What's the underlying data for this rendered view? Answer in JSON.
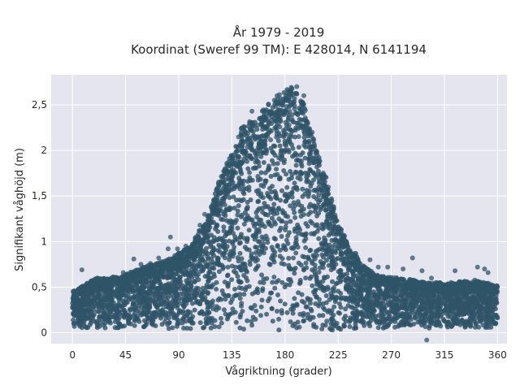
{
  "chart_data": {
    "type": "scatter",
    "title_line1": "År 1979 - 2019",
    "title_line2": "Koordinat (Sweref 99 TM): E 428014, N 6141194",
    "xlabel": "Vågriktning (grader)",
    "ylabel": "Signifikant våghöjd (m)",
    "xlim": [
      -18,
      368
    ],
    "ylim": [
      -0.12,
      2.83
    ],
    "x_ticks": [
      0,
      45,
      90,
      135,
      180,
      225,
      270,
      315,
      360
    ],
    "x_tick_labels": [
      "0",
      "45",
      "90",
      "135",
      "180",
      "225",
      "270",
      "315",
      "360"
    ],
    "y_ticks": [
      0,
      0.5,
      1,
      1.5,
      2,
      2.5
    ],
    "y_tick_labels": [
      "0",
      "0,5",
      "1",
      "1,5",
      "2",
      "2,5"
    ],
    "grid": true,
    "marker_color": "#2f5468",
    "background_color": "#e5e5f0",
    "x_range": [
      0,
      360
    ],
    "envelope_x": [
      0,
      20,
      40,
      60,
      80,
      100,
      115,
      125,
      135,
      145,
      155,
      165,
      175,
      185,
      195,
      205,
      215,
      225,
      235,
      245,
      260,
      280,
      300,
      320,
      340,
      360
    ],
    "envelope_max_y": [
      0.45,
      0.6,
      0.62,
      0.72,
      0.8,
      0.95,
      1.3,
      1.7,
      2.0,
      2.3,
      2.35,
      2.5,
      2.62,
      2.7,
      2.55,
      2.1,
      1.7,
      1.2,
      0.95,
      0.75,
      0.62,
      0.6,
      0.55,
      0.55,
      0.58,
      0.52
    ],
    "envelope_min_y": [
      0.05,
      0.05,
      0.05,
      0.05,
      0.04,
      0.03,
      0.03,
      0.02,
      0.02,
      0.01,
      0.01,
      0.01,
      0.01,
      0.01,
      0.01,
      0.01,
      0.02,
      0.02,
      0.03,
      0.04,
      0.05,
      0.05,
      0.05,
      0.05,
      0.05,
      0.05
    ],
    "outlier_points": [
      [
        8,
        0.69
      ],
      [
        17,
        0.56
      ],
      [
        43,
        0.66
      ],
      [
        52,
        0.81
      ],
      [
        58,
        0.75
      ],
      [
        66,
        0.76
      ],
      [
        73,
        0.82
      ],
      [
        81,
        0.92
      ],
      [
        83,
        1.05
      ],
      [
        89,
        0.92
      ],
      [
        96,
        0.95
      ],
      [
        108,
        1.18
      ],
      [
        112,
        1.3
      ],
      [
        128,
        1.65
      ],
      [
        131,
        1.78
      ],
      [
        140,
        2.0
      ],
      [
        143,
        2.2
      ],
      [
        150,
        2.3
      ],
      [
        152,
        2.43
      ],
      [
        160,
        2.35
      ],
      [
        166,
        2.5
      ],
      [
        171,
        2.55
      ],
      [
        176,
        2.57
      ],
      [
        183,
        2.65
      ],
      [
        190,
        2.7
      ],
      [
        196,
        2.6
      ],
      [
        203,
        2.2
      ],
      [
        206,
        2.0
      ],
      [
        212,
        1.63
      ],
      [
        215,
        1.46
      ],
      [
        222,
        1.25
      ],
      [
        232,
        1.0
      ],
      [
        240,
        0.87
      ],
      [
        252,
        0.8
      ],
      [
        259,
        0.72
      ],
      [
        267,
        0.72
      ],
      [
        280,
        0.7
      ],
      [
        288,
        0.82
      ],
      [
        296,
        0.68
      ],
      [
        304,
        0.6
      ],
      [
        324,
        0.68
      ],
      [
        343,
        0.72
      ],
      [
        349,
        0.7
      ],
      [
        352,
        0.66
      ],
      [
        300,
        -0.08
      ]
    ]
  }
}
